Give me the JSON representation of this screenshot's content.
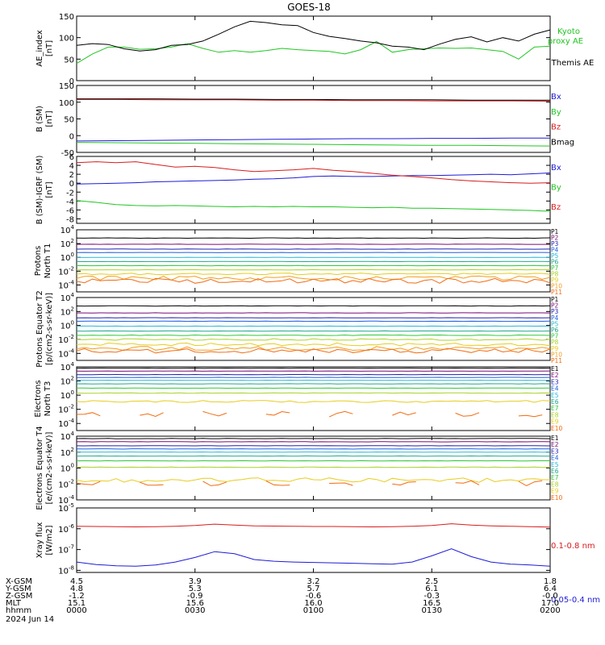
{
  "title": "GOES-18",
  "colors": {
    "black": "#000000",
    "blue": "#1d1bd6",
    "green": "#22c522",
    "red": "#d81c1c",
    "P": [
      "#000000",
      "#7a0a78",
      "#2020b4",
      "#1f5fe0",
      "#26b7d7",
      "#1fa78e",
      "#2ec83a",
      "#a8d22a",
      "#e6cc1e",
      "#f29c1e",
      "#f26b10",
      "#c80f0f"
    ],
    "E": [
      "#000000",
      "#7a0a78",
      "#2020b4",
      "#1f5fe0",
      "#26b7d7",
      "#1fa78e",
      "#2ec83a",
      "#a8d22a",
      "#e6cc1e",
      "#f26b10",
      "#c80f0f"
    ]
  },
  "ephemeris": {
    "row_labels": [
      "X-GSM",
      "Y-GSM",
      "Z-GSM",
      "MLT",
      "hhmm",
      "2024 Jun 14"
    ],
    "columns": [
      [
        "4.5",
        "4.8",
        "-1.2",
        "15.1",
        "0000"
      ],
      [
        "3.9",
        "5.3",
        "-0.9",
        "15.6",
        "0030"
      ],
      [
        "3.2",
        "5.7",
        "-0.6",
        "16.0",
        "0100"
      ],
      [
        "2.5",
        "6.1",
        "-0.3",
        "16.5",
        "0130"
      ],
      [
        "1.8",
        "6.4",
        "-0.0",
        "17.0",
        "0200"
      ]
    ]
  },
  "chart_data": [
    {
      "type": "line",
      "ylabel": "AE_index [nT]",
      "ylim": [
        0,
        150
      ],
      "yticks": [
        "0",
        "50",
        "100",
        "150"
      ],
      "x": [
        0,
        4,
        8,
        12,
        16,
        20,
        24,
        28,
        32,
        36,
        40,
        44,
        48,
        52,
        56,
        60,
        64,
        68,
        72,
        76,
        80,
        84,
        88,
        92,
        96,
        100,
        104,
        108,
        112,
        116,
        120
      ],
      "series": [
        {
          "name": "Kyoto proxy AE",
          "color_key": "green",
          "values": [
            40,
            62,
            78,
            78,
            73,
            74,
            78,
            86,
            75,
            66,
            70,
            66,
            70,
            75,
            72,
            70,
            68,
            62,
            72,
            91,
            66,
            72,
            74,
            76,
            75,
            76,
            72,
            68,
            50,
            78,
            80
          ]
        },
        {
          "name": "Themis AE",
          "color_key": "black",
          "values": [
            82,
            86,
            84,
            74,
            69,
            72,
            82,
            84,
            92,
            108,
            125,
            138,
            135,
            130,
            128,
            112,
            103,
            98,
            92,
            88,
            80,
            78,
            72,
            85,
            96,
            102,
            90,
            100,
            92,
            108,
            118
          ]
        }
      ],
      "legend": [
        "Kyoto proxy AE",
        "Themis AE"
      ]
    },
    {
      "type": "line",
      "ylabel": "B (SM) [nT]",
      "ylim": [
        -50,
        150
      ],
      "yticks": [
        "-50",
        "0",
        "50",
        "100",
        "150"
      ],
      "x": [
        0,
        10,
        20,
        30,
        40,
        50,
        60,
        70,
        80,
        90,
        100,
        110,
        120
      ],
      "series": [
        {
          "name": "Bx",
          "color_key": "blue",
          "values": [
            -16,
            -15,
            -14,
            -13,
            -12,
            -11,
            -10,
            -9,
            -9,
            -8,
            -8,
            -7,
            -7
          ]
        },
        {
          "name": "By",
          "color_key": "green",
          "values": [
            -20,
            -21,
            -22,
            -23,
            -24,
            -25,
            -26,
            -27,
            -28,
            -29,
            -29,
            -30,
            -31
          ]
        },
        {
          "name": "Bz",
          "color_key": "red",
          "values": [
            108,
            108,
            107,
            107,
            107,
            106,
            106,
            105,
            105,
            104,
            104,
            104,
            103
          ]
        },
        {
          "name": "Bmag",
          "color_key": "black",
          "values": [
            110,
            110,
            110,
            109,
            109,
            108,
            108,
            107,
            107,
            107,
            106,
            106,
            106
          ]
        }
      ],
      "legend": [
        "Bx",
        "By",
        "Bz",
        "Bmag"
      ]
    },
    {
      "type": "line",
      "ylabel": "B (SM)-IGRF (SM) [nT]",
      "ylim": [
        -9,
        6
      ],
      "yticks": [
        "-8",
        "-6",
        "-4",
        "-2",
        "0",
        "2",
        "4",
        "6"
      ],
      "x": [
        0,
        5,
        10,
        15,
        20,
        25,
        30,
        35,
        40,
        45,
        50,
        55,
        60,
        65,
        70,
        75,
        80,
        85,
        90,
        95,
        100,
        105,
        110,
        115,
        120
      ],
      "series": [
        {
          "name": "Bx",
          "color_key": "blue",
          "values": [
            -0.2,
            -0.1,
            0,
            0.1,
            0.3,
            0.4,
            0.5,
            0.6,
            0.7,
            0.9,
            1.0,
            1.2,
            1.5,
            1.6,
            1.5,
            1.5,
            1.6,
            1.7,
            1.7,
            1.8,
            1.9,
            2.0,
            1.9,
            2.1,
            2.3
          ]
        },
        {
          "name": "By",
          "color_key": "green",
          "values": [
            -3.9,
            -4.3,
            -4.8,
            -5.0,
            -5.1,
            -5.0,
            -5.1,
            -5.2,
            -5.3,
            -5.2,
            -5.3,
            -5.2,
            -5.3,
            -5.3,
            -5.4,
            -5.5,
            -5.4,
            -5.6,
            -5.6,
            -5.7,
            -5.8,
            -5.9,
            -6.0,
            -6.1,
            -6.3
          ]
        },
        {
          "name": "Bz",
          "color_key": "red",
          "values": [
            4.6,
            4.8,
            4.6,
            4.8,
            4.2,
            3.6,
            3.8,
            3.5,
            3.0,
            2.6,
            2.8,
            3.0,
            3.3,
            2.9,
            2.6,
            2.2,
            1.8,
            1.5,
            1.2,
            0.8,
            0.5,
            0.3,
            0.1,
            0.0,
            0.1
          ]
        }
      ],
      "legend": [
        "Bx",
        "By",
        "Bz"
      ]
    },
    {
      "type": "line",
      "scale": "log",
      "ylabel": "Protons North T1",
      "ylim_exp": [
        -5,
        4
      ],
      "yticks": [
        "10^-4",
        "10^-2",
        "10^0",
        "10^2",
        "10^4"
      ],
      "series_labels": [
        "P1",
        "P2",
        "P3",
        "P4",
        "P5",
        "P6",
        "P7",
        "P8",
        "P9",
        "P10",
        "P11"
      ],
      "levels_log10": [
        2.8,
        1.9,
        1.2,
        0.7,
        0.0,
        -0.6,
        -1.2,
        -1.8,
        -2.4,
        -3.0,
        -3.4
      ],
      "noise_log10": [
        0.03,
        0.02,
        0.02,
        0.02,
        0.02,
        0.02,
        0.02,
        0.03,
        0.12,
        0.3,
        0.35
      ]
    },
    {
      "type": "line",
      "scale": "log",
      "ylabel": "Protons Equator T2 [p/(cm2-s-sr-keV)]",
      "ylim_exp": [
        -5,
        4
      ],
      "yticks": [
        "10^-4",
        "10^-2",
        "10^0",
        "10^2",
        "10^4"
      ],
      "series_labels": [
        "P1",
        "P2",
        "P3",
        "P4",
        "P5",
        "P6",
        "P7",
        "P8",
        "P9",
        "P10",
        "P11"
      ],
      "levels_log10": [
        2.8,
        1.8,
        1.1,
        0.6,
        -0.1,
        -0.8,
        -1.4,
        -2.0,
        -2.7,
        -3.3,
        -3.6
      ],
      "noise_log10": [
        0.03,
        0.02,
        0.02,
        0.02,
        0.02,
        0.02,
        0.04,
        0.12,
        0.2,
        0.3,
        0.35
      ]
    },
    {
      "type": "line",
      "scale": "log",
      "ylabel": "Electrons North T3",
      "ylim_exp": [
        -5,
        4
      ],
      "yticks": [
        "10^-4",
        "10^-2",
        "10^0",
        "10^2",
        "10^4"
      ],
      "series_labels": [
        "E1",
        "E2",
        "E3",
        "E4",
        "E5",
        "E6",
        "E7",
        "E8",
        "E9",
        "E10"
      ],
      "levels_log10": [
        3.8,
        3.4,
        2.9,
        2.5,
        2.1,
        1.6,
        1.0,
        0.3,
        -0.9,
        -2.7
      ],
      "noise_log10": [
        0.02,
        0.02,
        0.02,
        0.02,
        0.02,
        0.02,
        0.02,
        0.03,
        0.15,
        0.4
      ]
    },
    {
      "type": "line",
      "scale": "log",
      "ylabel": "Electrons Equator T4 [e/(cm2-s-sr-keV)]",
      "ylim_exp": [
        -4,
        4
      ],
      "yticks": [
        "10^-4",
        "10^-2",
        "10^0",
        "10^2",
        "10^4"
      ],
      "series_labels": [
        "E1",
        "E2",
        "E3",
        "E4",
        "E5",
        "E6",
        "E7",
        "E8",
        "E9",
        "E10"
      ],
      "levels_log10": [
        3.7,
        3.3,
        2.8,
        2.4,
        2.0,
        1.5,
        0.9,
        0.1,
        -1.5,
        -1.9
      ],
      "noise_log10": [
        0.02,
        0.02,
        0.02,
        0.02,
        0.02,
        0.02,
        0.02,
        0.03,
        0.3,
        0.35
      ]
    },
    {
      "type": "line",
      "scale": "log",
      "ylabel": "Xray flux [W/m2]",
      "ylim_exp": [
        -8.1,
        -5
      ],
      "yticks": [
        "10^-8",
        "10^-7",
        "10^-6",
        "10^-5"
      ],
      "x": [
        0,
        5,
        10,
        15,
        20,
        25,
        30,
        35,
        40,
        45,
        50,
        55,
        60,
        65,
        70,
        75,
        80,
        85,
        90,
        95,
        100,
        105,
        110,
        115,
        120
      ],
      "series": [
        {
          "name": "0.1-0.8 nm",
          "color_key": "red",
          "values_log10": [
            -5.88,
            -5.89,
            -5.9,
            -5.91,
            -5.9,
            -5.88,
            -5.84,
            -5.78,
            -5.82,
            -5.86,
            -5.87,
            -5.88,
            -5.89,
            -5.89,
            -5.9,
            -5.91,
            -5.9,
            -5.88,
            -5.84,
            -5.76,
            -5.82,
            -5.86,
            -5.88,
            -5.9,
            -5.92
          ]
        },
        {
          "name": "0.05-0.4 nm",
          "color_key": "blue",
          "values_log10": [
            -7.6,
            -7.72,
            -7.78,
            -7.8,
            -7.74,
            -7.6,
            -7.38,
            -7.1,
            -7.2,
            -7.48,
            -7.56,
            -7.6,
            -7.62,
            -7.64,
            -7.66,
            -7.68,
            -7.7,
            -7.6,
            -7.3,
            -6.96,
            -7.34,
            -7.6,
            -7.7,
            -7.74,
            -7.8
          ]
        }
      ],
      "legend": [
        "0.1-0.8 nm",
        "0.05-0.4 nm"
      ]
    }
  ]
}
